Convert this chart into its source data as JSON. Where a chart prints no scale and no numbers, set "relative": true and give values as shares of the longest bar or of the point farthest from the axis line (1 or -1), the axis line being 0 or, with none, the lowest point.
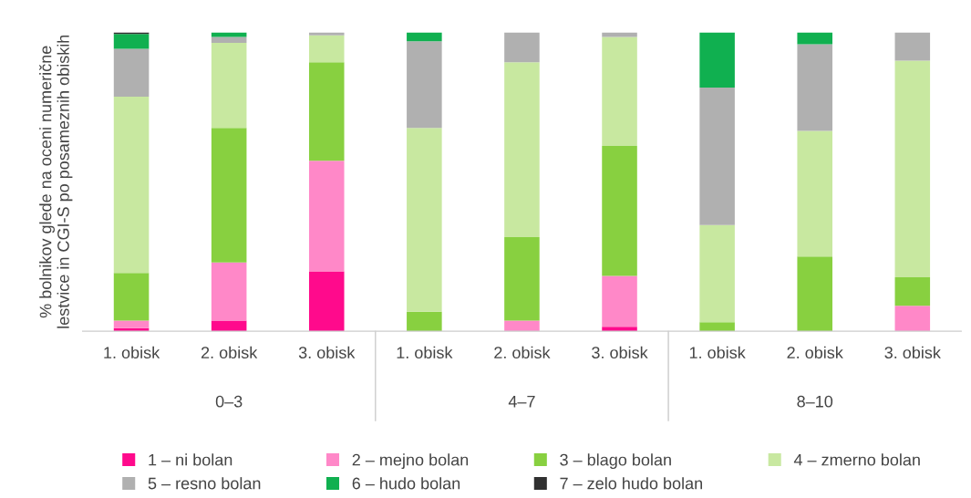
{
  "chart_data": {
    "type": "bar",
    "stacked": true,
    "relative": true,
    "ylabel": "% bolnikov glede na oceni numerične lestvice in CGI-S po posameznih obiskih",
    "categories": [
      "1. obisk",
      "2. obisk",
      "3. obisk",
      "1. obisk",
      "2. obisk",
      "3. obisk",
      "1. obisk",
      "2. obisk",
      "3. obisk"
    ],
    "annotations": [
      "0–3",
      "4–7",
      "8–10"
    ],
    "series": [
      {
        "name": "1 – ni bolan",
        "color": "#ff0a8c",
        "values": [
          0.01,
          0.035,
          0.2,
          0,
          0,
          0.015,
          0,
          0,
          0
        ]
      },
      {
        "name": "2 – mejno bolan",
        "color": "#ff88c8",
        "values": [
          0.025,
          0.195,
          0.37,
          0,
          0.035,
          0.17,
          0,
          0,
          0.085
        ]
      },
      {
        "name": "3 – blago bolan",
        "color": "#88d040",
        "values": [
          0.16,
          0.45,
          0.33,
          0.065,
          0.28,
          0.435,
          0.03,
          0.25,
          0.095
        ]
      },
      {
        "name": "4 – zmerno bolan",
        "color": "#c8e8a0",
        "values": [
          0.59,
          0.285,
          0.09,
          0.615,
          0.585,
          0.365,
          0.325,
          0.42,
          0.725
        ]
      },
      {
        "name": "5 – resno bolan",
        "color": "#b0b0b0",
        "values": [
          0.16,
          0.02,
          0.01,
          0.29,
          0.1,
          0.015,
          0.46,
          0.29,
          0.095
        ]
      },
      {
        "name": "6 – hudo bolan",
        "color": "#10b050",
        "values": [
          0.05,
          0.015,
          0,
          0.03,
          0,
          0,
          0.185,
          0.04,
          0
        ]
      },
      {
        "name": "7 – zelo hudo bolan",
        "color": "#303030",
        "values": [
          0.005,
          0,
          0,
          0,
          0,
          0,
          0,
          0,
          0
        ]
      }
    ],
    "legend": "bottom",
    "grid": false
  }
}
